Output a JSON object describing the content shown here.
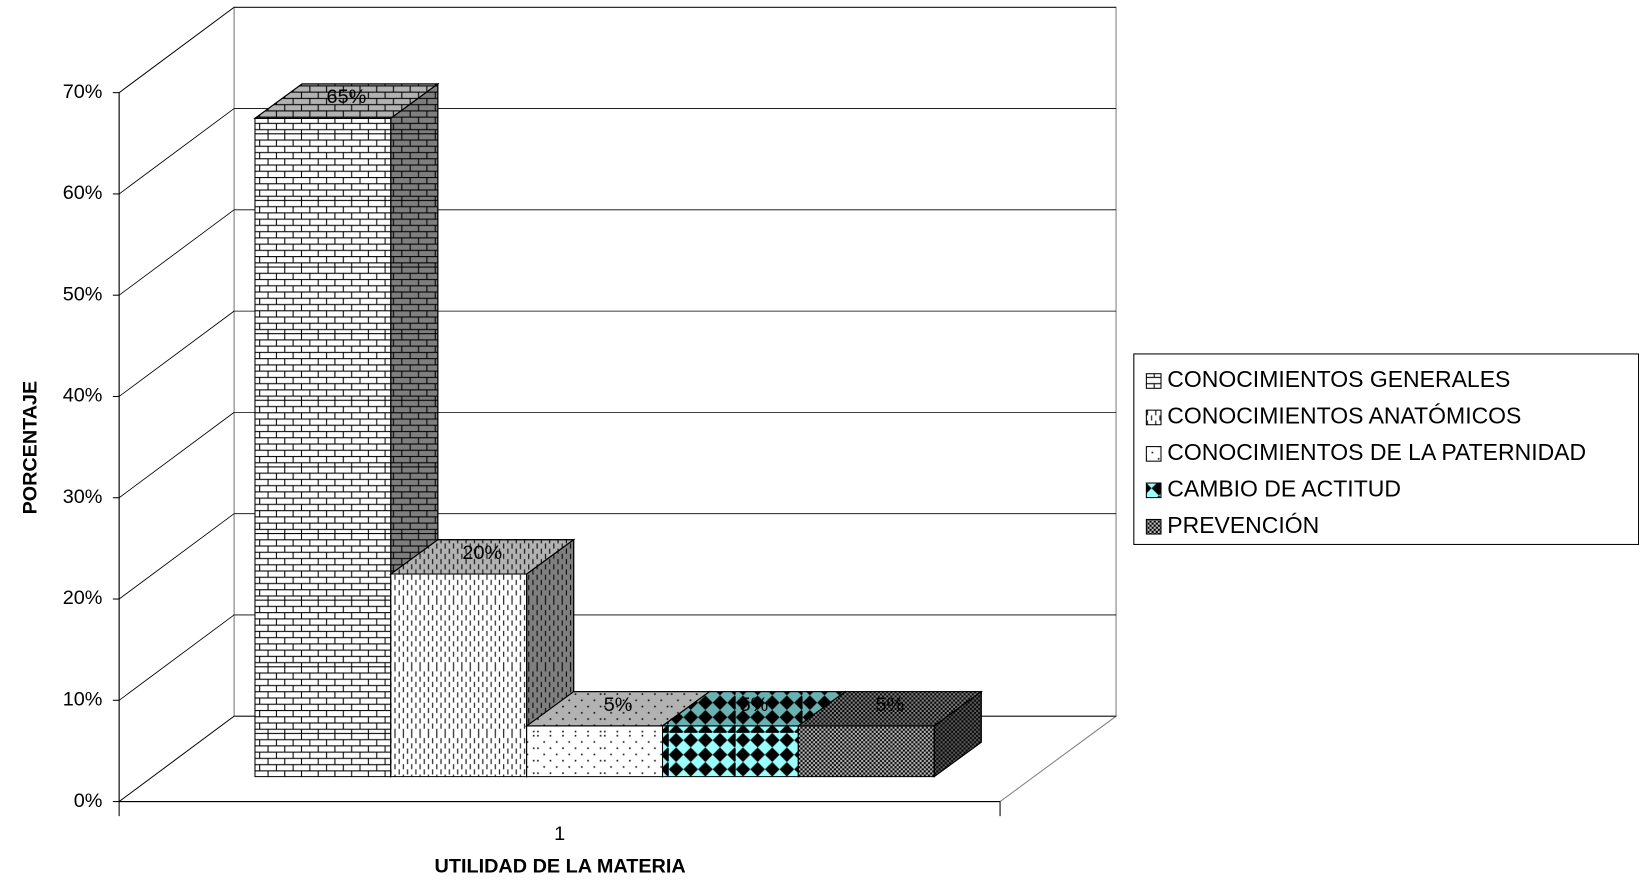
{
  "chart_data": {
    "type": "bar3d",
    "categories": [
      "1"
    ],
    "series": [
      {
        "name": "CONOCIMIENTOS GENERALES",
        "color": "#ffffff",
        "values": [
          65
        ],
        "value_labels": [
          "65%"
        ]
      },
      {
        "name": "CONOCIMIENTOS ANATÓMICOS",
        "color": "#ffffff",
        "values": [
          20
        ],
        "value_labels": [
          "20%"
        ]
      },
      {
        "name": "CONOCIMIENTOS DE LA PATERNIDAD",
        "color": "#ffffff",
        "values": [
          5
        ],
        "value_labels": [
          "5%"
        ]
      },
      {
        "name": "CAMBIO DE ACTITUD",
        "color": "#99ffff",
        "values": [
          5
        ],
        "value_labels": [
          "5%"
        ]
      },
      {
        "name": "PREVENCIÓN",
        "color": "#c0c0c0",
        "values": [
          5
        ],
        "value_labels": [
          "5%"
        ]
      }
    ],
    "ylim": [
      0,
      70
    ],
    "yticks": [
      {
        "value": 0,
        "label": "0%"
      },
      {
        "value": 10,
        "label": "10%"
      },
      {
        "value": 20,
        "label": "20%"
      },
      {
        "value": 30,
        "label": "30%"
      },
      {
        "value": 40,
        "label": "40%"
      },
      {
        "value": 50,
        "label": "50%"
      },
      {
        "value": 60,
        "label": "60%"
      },
      {
        "value": 70,
        "label": "70%"
      }
    ],
    "ylabel": "PORCENTAJE",
    "xlabel": "UTILIDAD DE LA MATERIA",
    "grid": true,
    "legend": "right"
  }
}
